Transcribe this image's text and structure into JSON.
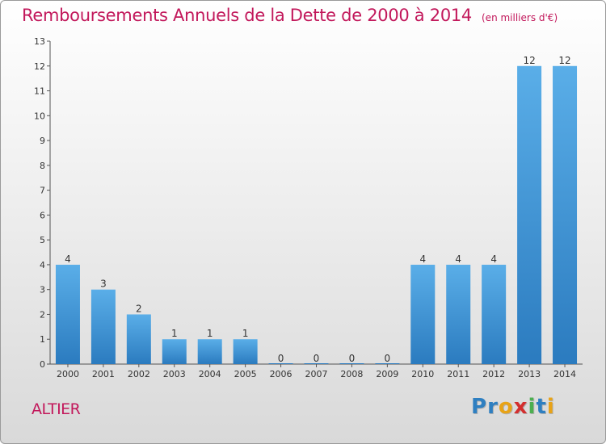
{
  "header": {
    "title": "Remboursements Annuels de la Dette de 2000 à 2014",
    "subtitle": "(en milliers d'€)"
  },
  "footer": {
    "commune": "ALTIER",
    "logo_text": "Proxiti",
    "logo_colors": [
      "#2e7fc1",
      "#2e7fc1",
      "#e8a317",
      "#d32f2f",
      "#4caf50",
      "#2e7fc1",
      "#e8a317"
    ]
  },
  "chart_data": {
    "type": "bar",
    "title": "Remboursements Annuels de la Dette de 2000 à 2014",
    "subtitle": "(en milliers d'€)",
    "categories": [
      "2000",
      "2001",
      "2002",
      "2003",
      "2004",
      "2005",
      "2006",
      "2007",
      "2008",
      "2009",
      "2010",
      "2011",
      "2012",
      "2013",
      "2014"
    ],
    "values": [
      4,
      3,
      2,
      1,
      1,
      1,
      0,
      0,
      0,
      0,
      4,
      4,
      4,
      12,
      12
    ],
    "data_labels": [
      "4",
      "3",
      "2",
      "1",
      "1",
      "1",
      "0",
      "0",
      "0",
      "0",
      "4",
      "4",
      "4",
      "12",
      "12"
    ],
    "y_ticks": [
      "0",
      "1",
      "2",
      "3",
      "4",
      "5",
      "6",
      "7",
      "8",
      "9",
      "10",
      "11",
      "12",
      "13"
    ],
    "ylim": [
      0,
      13
    ],
    "grid": false,
    "bar_color_top": "#5aaee8",
    "bar_color_bottom": "#2b7bbf"
  }
}
